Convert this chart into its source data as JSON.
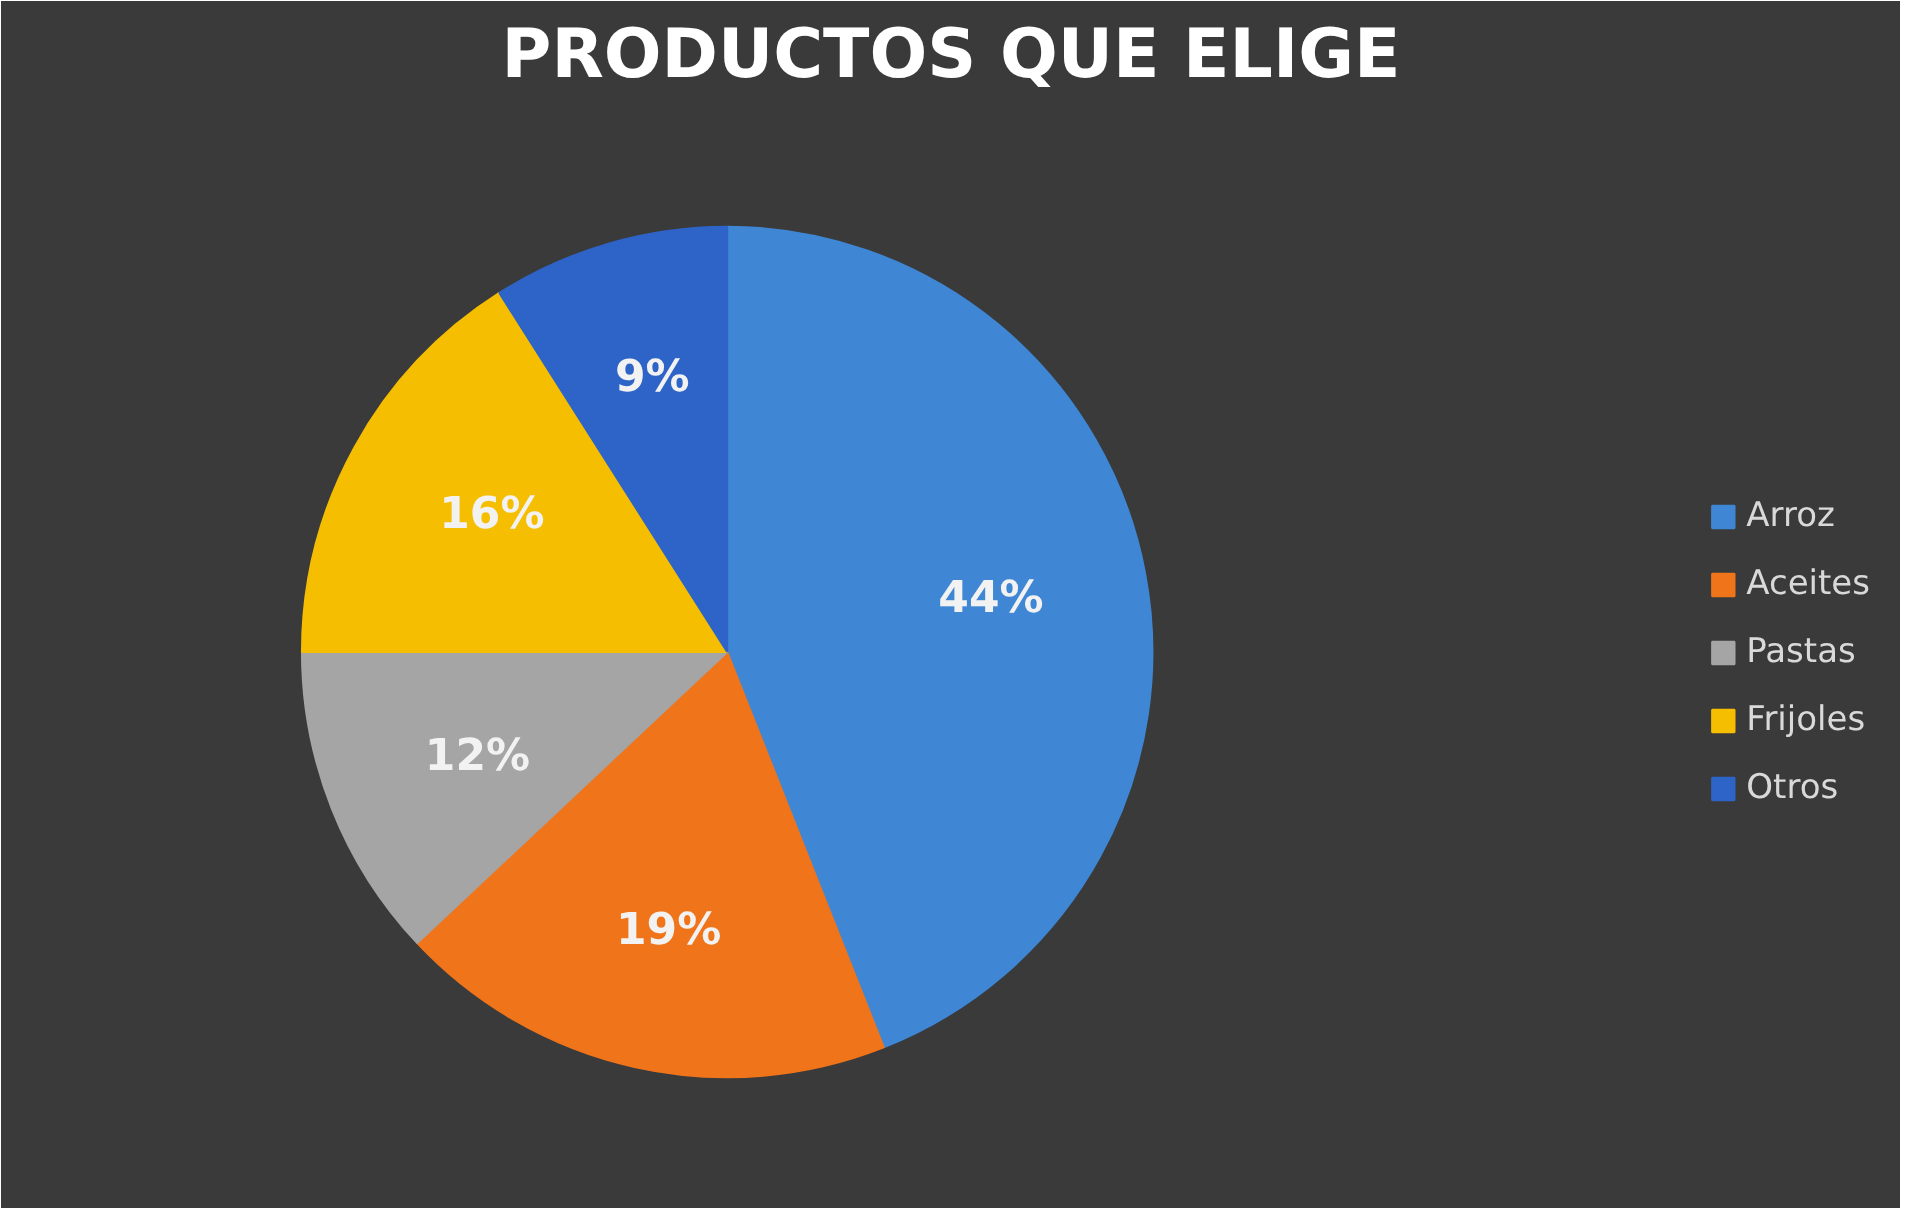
{
  "chart_data": {
    "type": "pie",
    "title": "PRODUCTOS QUE ELIGE",
    "categories": [
      "Arroz",
      "Aceites",
      "Pastas",
      "Frijoles",
      "Otros"
    ],
    "values": [
      44,
      19,
      12,
      16,
      9
    ],
    "colors": [
      "#3f87d4",
      "#f0741a",
      "#a5a5a5",
      "#f5be00",
      "#2e64c8"
    ],
    "value_labels": [
      "44%",
      "19%",
      "12%",
      "16%",
      "9%"
    ],
    "legend": "right"
  }
}
